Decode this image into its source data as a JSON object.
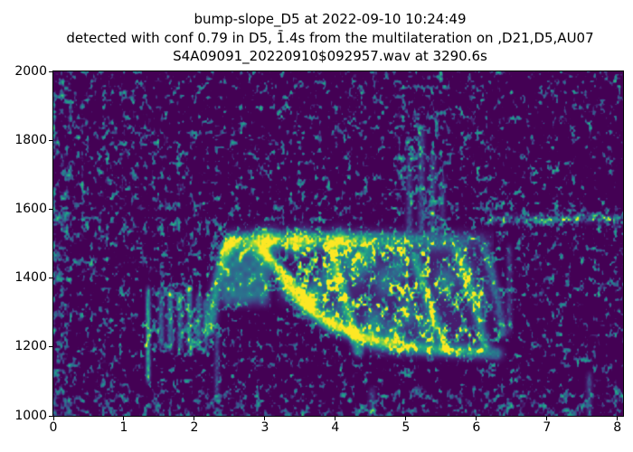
{
  "figure": {
    "bg": "#ffffff",
    "spine_color": "#000000",
    "title_lines": [
      "bump-slope_D5 at 2022-09-10 10:24:49",
      "detected with conf 0.79 in D5, 1̄.4s from the multilateration on ,D21,D5,AU07",
      "S4A09091_20220910$092957.wav at 3290.6s"
    ]
  },
  "chart_data": {
    "type": "heatmap",
    "subtype": "spectrogram",
    "title": "bump-slope_D5 at 2022-09-10 10:24:49\ndetected with conf 0.79 in D5, 1̄.4s from the multilateration on ,D21,D5,AU07\nS4A09091_20220910$092957.wav at 3290.6s",
    "xlabel": "",
    "ylabel": "",
    "x_unit": "s",
    "y_unit": "Hz",
    "xlim": [
      0,
      8.08
    ],
    "ylim": [
      1000,
      2000
    ],
    "xticks": [
      0,
      1,
      2,
      3,
      4,
      5,
      6,
      7,
      8
    ],
    "yticks": [
      1000,
      1200,
      1400,
      1600,
      1800,
      2000
    ],
    "grid": false,
    "legend": false,
    "colormap": "viridis",
    "colormap_stops": [
      [
        0.0,
        "#440154"
      ],
      [
        0.13,
        "#481f70"
      ],
      [
        0.25,
        "#3b528b"
      ],
      [
        0.38,
        "#2c728e"
      ],
      [
        0.5,
        "#21918c"
      ],
      [
        0.63,
        "#27ad81"
      ],
      [
        0.75,
        "#5ec962"
      ],
      [
        0.87,
        "#aadc32"
      ],
      [
        1.0,
        "#fde725"
      ]
    ],
    "description": "Spectrogram of a 'bump-slope' whale-call detection: flat plateau near 1510 Hz from ~2.5-5.9 s, bright descending slope from ~1480 Hz at 3.0 s to ~1200 Hz at 4.6 s, dense call body 1170-1510 Hz until ~6.3 s, precursor energy blob 1.3-2.2 s at 1200-1370 Hz, vertical noise plume near 5.2 s up to ~1850 Hz, dotted tonal line near 1572 Hz after 6.2 s, background speckle noise.",
    "noise": {
      "seed": 7,
      "scale1": [
        4.6,
        5.6
      ],
      "scale2": [
        2.1,
        2.6
      ],
      "mix": [
        0.6,
        0.4
      ],
      "threshold": 0.63,
      "thr_density_slope": 0.105,
      "gain": 0.8,
      "cap": 0.72,
      "spot_sigma": [
        0.085,
        26
      ]
    },
    "features": [
      {
        "type": "noise",
        "x": [
          -0.2,
          0.22
        ],
        "f": [
          985,
          2010
        ],
        "boost": 2.6
      },
      {
        "type": "noise",
        "x": [
          -0.2,
          8.3
        ],
        "f": [
          985,
          1068
        ],
        "boost": 2.2
      },
      {
        "type": "noise",
        "x": [
          0.2,
          1.6
        ],
        "f": [
          1690,
          2010
        ],
        "boost": 1.5
      },
      {
        "type": "noise",
        "x": [
          -0.2,
          2.35
        ],
        "f": [
          1400,
          1665
        ],
        "boost": 1.45
      },
      {
        "type": "noise",
        "x": [
          4.85,
          5.62
        ],
        "f": [
          1532,
          1878
        ],
        "boost": 2.1
      },
      {
        "type": "noise",
        "x": [
          4.55,
          5.75
        ],
        "f": [
          1865,
          2005
        ],
        "boost": 1.35
      },
      {
        "type": "noise",
        "x": [
          6.12,
          8.3
        ],
        "f": [
          1548,
          1600
        ],
        "boost": 2.6
      },
      {
        "type": "noise",
        "x": [
          1.42,
          2.22
        ],
        "f": [
          1182,
          1378
        ],
        "boost": 2.8
      },
      {
        "type": "noise",
        "x": [
          3.2,
          4.3
        ],
        "f": [
          1372,
          1502
        ],
        "boost": 1.9
      },
      {
        "type": "noise",
        "x": [
          3.45,
          4.3
        ],
        "f": [
          1282,
          1372
        ],
        "boost": 1.5
      },
      {
        "type": "noise",
        "x": [
          1.9,
          2.45
        ],
        "f": [
          1048,
          1252
        ],
        "boost": 1.5
      },
      {
        "type": "noise",
        "x": [
          0.3,
          1.32
        ],
        "f": [
          1078,
          1402
        ],
        "boost": 1.25
      },
      {
        "type": "noise",
        "x": [
          2.5,
          4.6
        ],
        "f": [
          1538,
          1662
        ],
        "boost": 1.3
      },
      {
        "type": "noise",
        "x": [
          6.35,
          8.3
        ],
        "f": [
          1100,
          1545
        ],
        "boost": 1.15
      },
      {
        "type": "band",
        "fc": 1511,
        "sigma": 17,
        "x": [
          2.44,
          6.25
        ],
        "profile": [
          [
            2.44,
            0.5
          ],
          [
            2.6,
            0.88
          ],
          [
            4.4,
            0.88
          ],
          [
            5.0,
            0.62
          ],
          [
            5.9,
            0.4
          ],
          [
            6.25,
            0.12
          ]
        ],
        "tex": [
          0.5,
          0.5
        ]
      },
      {
        "type": "band",
        "fc": 1572,
        "sigma": 8,
        "x": [
          6.15,
          8.08
        ],
        "profile": [
          [
            6.15,
            0.52
          ],
          [
            8.08,
            0.52
          ]
        ],
        "tex": [
          0.1,
          1.2
        ]
      },
      {
        "type": "line",
        "pts": [
          [
            2.21,
            1250
          ],
          [
            2.3,
            1372
          ],
          [
            2.4,
            1468
          ],
          [
            2.53,
            1506
          ]
        ],
        "sigma": 11,
        "profile": [
          [
            2.21,
            0.6
          ],
          [
            2.53,
            0.6
          ]
        ],
        "tex": [
          0.7,
          0.3
        ]
      },
      {
        "type": "line",
        "pts": [
          [
            2.97,
            1478
          ],
          [
            3.2,
            1418
          ],
          [
            3.5,
            1332
          ],
          [
            3.8,
            1282
          ],
          [
            4.15,
            1247
          ],
          [
            4.6,
            1216
          ],
          [
            5.1,
            1200
          ],
          [
            5.7,
            1190
          ],
          [
            6.28,
            1182
          ]
        ],
        "sigma": 13,
        "profile": [
          [
            2.97,
            0.5
          ],
          [
            3.3,
            0.95
          ],
          [
            4.5,
            0.95
          ],
          [
            4.9,
            0.62
          ],
          [
            6.28,
            0.5
          ]
        ],
        "tex": [
          0.68,
          0.32
        ]
      },
      {
        "type": "line",
        "pts": [
          [
            3.93,
            1492
          ],
          [
            4.12,
            1345
          ],
          [
            4.32,
            1188
          ]
        ],
        "sigma": 10,
        "profile": [
          [
            3.93,
            0.72
          ],
          [
            4.32,
            0.72
          ]
        ],
        "tex": [
          0.6,
          0.4
        ]
      },
      {
        "type": "line",
        "pts": [
          [
            5.12,
            1462
          ],
          [
            5.35,
            1310
          ],
          [
            5.55,
            1198
          ]
        ],
        "sigma": 10,
        "profile": [
          [
            5.12,
            0.55
          ],
          [
            5.55,
            0.55
          ]
        ],
        "tex": [
          0.55,
          0.45
        ]
      },
      {
        "type": "line",
        "pts": [
          [
            5.72,
            1482
          ],
          [
            5.98,
            1320
          ],
          [
            6.12,
            1205
          ]
        ],
        "sigma": 10,
        "profile": [
          [
            5.72,
            0.5
          ],
          [
            6.12,
            0.5
          ]
        ],
        "tex": [
          0.55,
          0.45
        ]
      },
      {
        "type": "line",
        "pts": [
          [
            6.12,
            1490
          ],
          [
            6.3,
            1340
          ],
          [
            6.36,
            1240
          ]
        ],
        "sigma": 10,
        "profile": [
          [
            6.12,
            0.4
          ],
          [
            6.36,
            0.4
          ]
        ],
        "tex": [
          0.5,
          0.5
        ]
      },
      {
        "type": "line",
        "pts": [
          [
            3.05,
            1460
          ],
          [
            3.35,
            1400
          ],
          [
            3.7,
            1330
          ]
        ],
        "sigma": 9,
        "profile": [
          [
            3.05,
            0.4
          ],
          [
            3.7,
            0.4
          ]
        ],
        "tex": [
          0.5,
          0.5
        ]
      },
      {
        "type": "fill",
        "x": [
          2.4,
          3.06
        ],
        "f": [
          1325,
          1502
        ],
        "I": 0.5,
        "tex": [
          0.55,
          0.45
        ],
        "feather": [
          0.07,
          28
        ]
      },
      {
        "type": "body",
        "x": [
          3.32,
          6.32
        ],
        "top": [
          [
            3.32,
            1492
          ],
          [
            3.6,
            1502
          ],
          [
            5.6,
            1502
          ],
          [
            6.0,
            1488
          ],
          [
            6.32,
            1438
          ]
        ],
        "bot": [
          [
            3.32,
            1352
          ],
          [
            3.6,
            1316
          ],
          [
            3.9,
            1272
          ],
          [
            4.2,
            1240
          ],
          [
            4.5,
            1182
          ],
          [
            5.0,
            1172
          ],
          [
            6.0,
            1172
          ],
          [
            6.32,
            1205
          ]
        ],
        "base": 0.13,
        "thr": 0.46,
        "gain": 0.9,
        "feather": 20,
        "profile": [
          [
            3.32,
            0.25
          ],
          [
            3.6,
            0.75
          ],
          [
            4.3,
            1.0
          ],
          [
            5.8,
            0.95
          ],
          [
            6.05,
            0.6
          ],
          [
            6.32,
            0.25
          ]
        ]
      },
      {
        "type": "vline",
        "x": 1.345,
        "f": [
          1102,
          1368
        ],
        "sx": 0.022,
        "I": 0.78
      },
      {
        "type": "vline",
        "x": 1.53,
        "f": [
          1205,
          1362
        ],
        "sx": 0.03,
        "I": 0.42
      },
      {
        "type": "vline",
        "x": 1.66,
        "f": [
          1195,
          1370
        ],
        "sx": 0.03,
        "I": 0.5
      },
      {
        "type": "vline",
        "x": 1.8,
        "f": [
          1192,
          1360
        ],
        "sx": 0.03,
        "I": 0.44
      },
      {
        "type": "vline",
        "x": 1.93,
        "f": [
          1200,
          1368
        ],
        "sx": 0.03,
        "I": 0.5
      },
      {
        "type": "vline",
        "x": 2.06,
        "f": [
          1195,
          1352
        ],
        "sx": 0.03,
        "I": 0.44
      },
      {
        "type": "vline",
        "x": 2.16,
        "f": [
          1208,
          1338
        ],
        "sx": 0.028,
        "I": 0.36
      },
      {
        "type": "vline",
        "x": 2.32,
        "f": [
          1055,
          1238
        ],
        "sx": 0.026,
        "I": 0.3
      },
      {
        "type": "vline",
        "x": 5.05,
        "f": [
          1535,
          1755
        ],
        "sx": 0.035,
        "I": 0.3
      },
      {
        "type": "vline",
        "x": 5.22,
        "f": [
          1542,
          1832
        ],
        "sx": 0.035,
        "I": 0.34
      },
      {
        "type": "vline",
        "x": 5.38,
        "f": [
          1535,
          1762
        ],
        "sx": 0.035,
        "I": 0.3
      },
      {
        "type": "vline",
        "x": 5.52,
        "f": [
          1540,
          1692
        ],
        "sx": 0.03,
        "I": 0.26
      },
      {
        "type": "vline",
        "x": 6.47,
        "f": [
          1242,
          1492
        ],
        "sx": 0.03,
        "I": 0.24
      },
      {
        "type": "vline",
        "x": 4.52,
        "f": [
          1002,
          1075
        ],
        "sx": 0.035,
        "I": 0.32
      },
      {
        "type": "vline",
        "x": 7.6,
        "f": [
          1005,
          1120
        ],
        "sx": 0.03,
        "I": 0.3
      },
      {
        "type": "spot",
        "x": 3.62,
        "f": 1332,
        "I": 0.5
      },
      {
        "type": "spot",
        "x": 3.92,
        "f": 1400,
        "I": 0.5
      },
      {
        "type": "spot",
        "x": 4.45,
        "f": 1462,
        "I": 0.46
      },
      {
        "type": "spot",
        "x": 3.73,
        "f": 1352,
        "I": 0.46
      },
      {
        "type": "spot",
        "x": 4.28,
        "f": 1428,
        "I": 0.44
      },
      {
        "type": "spot",
        "x": 3.97,
        "f": 1282,
        "I": 0.44
      },
      {
        "type": "spot",
        "x": 4.55,
        "f": 1266,
        "I": 0.5
      },
      {
        "type": "spot",
        "x": 4.82,
        "f": 1234,
        "I": 0.44
      },
      {
        "type": "spot",
        "x": 5.3,
        "f": 1258,
        "I": 0.4
      },
      {
        "type": "spot",
        "x": 5.02,
        "f": 1302,
        "I": 0.36
      },
      {
        "type": "spot",
        "x": 5.55,
        "f": 1388,
        "I": 0.4
      },
      {
        "type": "spot",
        "x": 4.15,
        "f": 1472,
        "I": 0.4
      },
      {
        "type": "spot",
        "x": 3.42,
        "f": 1496,
        "I": 0.36
      },
      {
        "type": "spot",
        "x": 2.95,
        "f": 1505,
        "I": 0.34
      },
      {
        "type": "spot",
        "x": 4.9,
        "f": 1430,
        "I": 0.34
      },
      {
        "type": "spot",
        "x": 5.85,
        "f": 1415,
        "I": 0.3
      },
      {
        "type": "spot",
        "x": 6.05,
        "f": 1350,
        "I": 0.28
      },
      {
        "type": "spot",
        "x": 3.3,
        "f": 1368,
        "I": 0.34
      },
      {
        "type": "spot",
        "x": 4.7,
        "f": 1390,
        "I": 0.32
      },
      {
        "type": "spot",
        "x": 3.1,
        "f": 1510,
        "I": 0.36
      },
      {
        "type": "spot",
        "x": 3.55,
        "f": 1512,
        "I": 0.34
      },
      {
        "type": "spot",
        "x": 4.05,
        "f": 1508,
        "I": 0.32
      }
    ]
  }
}
